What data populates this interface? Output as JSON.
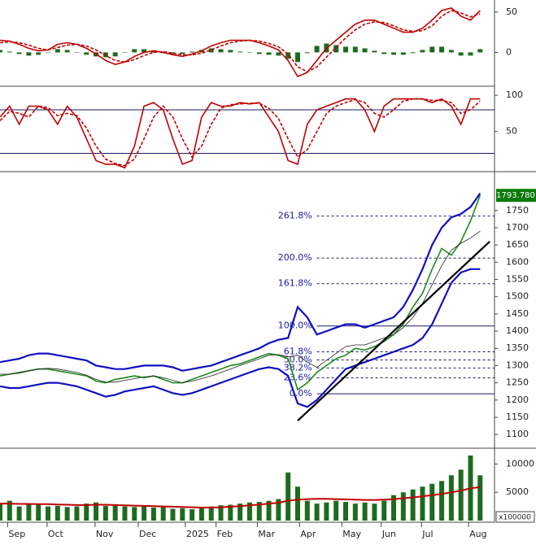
{
  "chart_data": [
    {
      "type": "line",
      "xlim": [
        0,
        51.5
      ],
      "ylim": [
        -40,
        63
      ],
      "yticks": [
        0,
        50
      ],
      "x": [
        0,
        1,
        2,
        3,
        4,
        5,
        6,
        7,
        8,
        9,
        10,
        11,
        12,
        13,
        14,
        15,
        16,
        17,
        18,
        19,
        20,
        21,
        22,
        23,
        24,
        25,
        26,
        27,
        28,
        29,
        30,
        31,
        32,
        33,
        34,
        35,
        36,
        37,
        38,
        39,
        40,
        41,
        42,
        43,
        44,
        45,
        46,
        47,
        48,
        49,
        50
      ],
      "series": [
        {
          "kind": "bar",
          "color": "#1e6b1e",
          "values": [
            3,
            1,
            -2,
            -4,
            -3,
            0,
            4,
            3,
            0,
            -3,
            -5,
            -6,
            -5,
            0,
            4,
            4,
            2,
            -1,
            -2,
            -2,
            1,
            3,
            5,
            4,
            3,
            1,
            0,
            -2,
            -3,
            -4,
            -8,
            -12,
            -1,
            8,
            11,
            9,
            7,
            7,
            5,
            2,
            -2,
            -3,
            -3,
            -1,
            3,
            7,
            7,
            3,
            -4,
            -4,
            4
          ]
        },
        {
          "color": "#c00000",
          "values": [
            15,
            14,
            10,
            5,
            2,
            3,
            10,
            12,
            10,
            5,
            -2,
            -10,
            -15,
            -12,
            -5,
            0,
            2,
            0,
            -3,
            -5,
            -2,
            2,
            8,
            12,
            15,
            15,
            15,
            12,
            8,
            3,
            -10,
            -30,
            -25,
            -10,
            5,
            15,
            25,
            35,
            40,
            40,
            35,
            30,
            25,
            25,
            30,
            40,
            52,
            55,
            45,
            40,
            52
          ]
        },
        {
          "color": "#c00000",
          "dashed": true,
          "values": [
            12,
            13,
            12,
            9,
            5,
            3,
            6,
            9,
            10,
            8,
            3,
            -4,
            -10,
            -12,
            -9,
            -4,
            0,
            1,
            -1,
            -3,
            -3,
            -1,
            3,
            8,
            12,
            14,
            15,
            14,
            11,
            7,
            -2,
            -18,
            -24,
            -18,
            -6,
            6,
            18,
            28,
            35,
            38,
            37,
            33,
            28,
            26,
            27,
            33,
            45,
            52,
            49,
            44,
            48
          ]
        }
      ]
    },
    {
      "type": "line",
      "xlim": [
        0,
        51.5
      ],
      "ylim": [
        -3,
        108
      ],
      "yticks": [
        50,
        100
      ],
      "hlines": [
        80,
        20
      ],
      "x": [
        0,
        1,
        2,
        3,
        4,
        5,
        6,
        7,
        8,
        9,
        10,
        11,
        12,
        13,
        14,
        15,
        16,
        17,
        18,
        19,
        20,
        21,
        22,
        23,
        24,
        25,
        26,
        27,
        28,
        29,
        30,
        31,
        32,
        33,
        34,
        35,
        36,
        37,
        38,
        39,
        40,
        41,
        42,
        43,
        44,
        45,
        46,
        47,
        48,
        49,
        50
      ],
      "series": [
        {
          "color": "#c00000",
          "values": [
            70,
            85,
            60,
            85,
            85,
            80,
            60,
            85,
            70,
            40,
            10,
            5,
            5,
            0,
            30,
            85,
            90,
            80,
            40,
            5,
            10,
            70,
            90,
            85,
            85,
            90,
            88,
            90,
            70,
            50,
            10,
            5,
            60,
            80,
            85,
            90,
            95,
            95,
            80,
            50,
            85,
            95,
            95,
            95,
            95,
            90,
            95,
            85,
            60,
            95,
            95
          ]
        },
        {
          "color": "#c00000",
          "dashed": true,
          "values": [
            65,
            78,
            75,
            70,
            85,
            83,
            72,
            75,
            72,
            55,
            30,
            12,
            6,
            3,
            12,
            40,
            70,
            85,
            70,
            40,
            15,
            30,
            60,
            82,
            87,
            88,
            89,
            89,
            82,
            68,
            40,
            15,
            25,
            50,
            75,
            85,
            90,
            94,
            90,
            75,
            70,
            80,
            92,
            95,
            95,
            93,
            93,
            90,
            75,
            80,
            92
          ]
        }
      ]
    },
    {
      "type": "line",
      "xlim": [
        0,
        51.5
      ],
      "ylim": [
        1065,
        1858
      ],
      "yticks": [
        1100,
        1150,
        1200,
        1250,
        1300,
        1350,
        1400,
        1450,
        1500,
        1550,
        1600,
        1650,
        1700,
        1750
      ],
      "last_value": {
        "value": 1793.78,
        "label": "1793.780"
      },
      "fib_levels": [
        {
          "label": "0.0%",
          "price": 1218
        },
        {
          "label": "23.6%",
          "price": 1264.5
        },
        {
          "label": "38.2%",
          "price": 1293
        },
        {
          "label": "50.0%",
          "price": 1316.5
        },
        {
          "label": "61.8%",
          "price": 1340
        },
        {
          "label": "100.0%",
          "price": 1415
        },
        {
          "label": "161.8%",
          "price": 1537.7
        },
        {
          "label": "200.0%",
          "price": 1612
        },
        {
          "label": "261.8%",
          "price": 1733.7
        }
      ],
      "trendline": {
        "x": [
          31,
          51
        ],
        "y": [
          1140,
          1660
        ]
      },
      "x": [
        0,
        1,
        2,
        3,
        4,
        5,
        6,
        7,
        8,
        9,
        10,
        11,
        12,
        13,
        14,
        15,
        16,
        17,
        18,
        19,
        20,
        21,
        22,
        23,
        24,
        25,
        26,
        27,
        28,
        29,
        30,
        31,
        32,
        33,
        34,
        35,
        36,
        37,
        38,
        39,
        40,
        41,
        42,
        43,
        44,
        45,
        46,
        47,
        48,
        49,
        50
      ],
      "series": [
        {
          "color": "#1a8a1a",
          "values": [
            1270,
            1275,
            1280,
            1285,
            1290,
            1290,
            1285,
            1280,
            1275,
            1270,
            1255,
            1250,
            1260,
            1265,
            1270,
            1265,
            1270,
            1260,
            1250,
            1250,
            1260,
            1270,
            1280,
            1290,
            1300,
            1305,
            1315,
            1325,
            1335,
            1330,
            1320,
            1230,
            1250,
            1280,
            1300,
            1320,
            1330,
            1350,
            1345,
            1355,
            1370,
            1390,
            1420,
            1470,
            1510,
            1580,
            1640,
            1620,
            1660,
            1720,
            1793.78
          ]
        },
        {
          "color": "#1010c0",
          "width": 2.2,
          "values": [
            1310,
            1315,
            1320,
            1330,
            1335,
            1335,
            1330,
            1325,
            1320,
            1315,
            1300,
            1295,
            1290,
            1290,
            1295,
            1300,
            1300,
            1300,
            1295,
            1285,
            1290,
            1295,
            1300,
            1310,
            1320,
            1330,
            1340,
            1350,
            1365,
            1375,
            1380,
            1470,
            1440,
            1390,
            1400,
            1410,
            1420,
            1420,
            1410,
            1420,
            1430,
            1440,
            1470,
            1520,
            1580,
            1650,
            1700,
            1730,
            1740,
            1760,
            1800
          ]
        },
        {
          "color": "#222",
          "width": 0.8,
          "values": [
            1275,
            1275,
            1278,
            1285,
            1290,
            1292,
            1290,
            1285,
            1280,
            1272,
            1260,
            1252,
            1252,
            1257,
            1262,
            1267,
            1270,
            1265,
            1257,
            1250,
            1255,
            1262,
            1270,
            1280,
            1290,
            1300,
            1310,
            1320,
            1330,
            1332,
            1325,
            1330,
            1310,
            1295,
            1315,
            1335,
            1355,
            1360,
            1360,
            1370,
            1380,
            1390,
            1410,
            1440,
            1480,
            1535,
            1590,
            1635,
            1655,
            1670,
            1690
          ]
        },
        {
          "color": "#1010c0",
          "width": 2.2,
          "values": [
            1240,
            1235,
            1235,
            1240,
            1245,
            1250,
            1250,
            1245,
            1240,
            1230,
            1220,
            1210,
            1215,
            1225,
            1230,
            1235,
            1240,
            1230,
            1220,
            1215,
            1220,
            1230,
            1240,
            1250,
            1260,
            1270,
            1280,
            1290,
            1295,
            1290,
            1270,
            1190,
            1180,
            1200,
            1230,
            1260,
            1290,
            1300,
            1310,
            1320,
            1330,
            1340,
            1350,
            1360,
            1380,
            1420,
            1480,
            1540,
            1570,
            1580,
            1580
          ]
        }
      ]
    },
    {
      "type": "line",
      "xlim": [
        0,
        51.5
      ],
      "ylim": [
        0,
        12500
      ],
      "yticks": [
        5000,
        10000
      ],
      "unit_label": "x100000",
      "xticks": [
        {
          "value": 0.8,
          "label": "Sep"
        },
        {
          "value": 4.9,
          "label": "Oct"
        },
        {
          "value": 9.9,
          "label": "Nov"
        },
        {
          "value": 14.4,
          "label": "Dec"
        },
        {
          "value": 19.3,
          "label": "2025"
        },
        {
          "value": 22.5,
          "label": "Feb"
        },
        {
          "value": 26.8,
          "label": "Mar"
        },
        {
          "value": 31.2,
          "label": "Apr"
        },
        {
          "value": 35.6,
          "label": "May"
        },
        {
          "value": 39.7,
          "label": "Jun"
        },
        {
          "value": 43.9,
          "label": "Jul"
        },
        {
          "value": 48.8,
          "label": "Aug"
        }
      ],
      "x": [
        0,
        1,
        2,
        3,
        4,
        5,
        6,
        7,
        8,
        9,
        10,
        11,
        12,
        13,
        14,
        15,
        16,
        17,
        18,
        19,
        20,
        21,
        22,
        23,
        24,
        25,
        26,
        27,
        28,
        29,
        30,
        31,
        32,
        33,
        34,
        35,
        36,
        37,
        38,
        39,
        40,
        41,
        42,
        43,
        44,
        45,
        46,
        47,
        48,
        49,
        50
      ],
      "series": [
        {
          "kind": "bar",
          "color": "#1e6b1e",
          "values": [
            3000,
            3500,
            2500,
            3000,
            2800,
            2500,
            2600,
            2400,
            2500,
            3000,
            3200,
            2600,
            2800,
            2500,
            2400,
            2500,
            2300,
            2400,
            2100,
            2200,
            2000,
            2300,
            2500,
            2700,
            2800,
            3000,
            3200,
            3300,
            3500,
            3800,
            8500,
            6000,
            3500,
            3000,
            3200,
            3500,
            3300,
            3000,
            3200,
            3000,
            3500,
            4500,
            5000,
            5500,
            6000,
            6500,
            7000,
            8000,
            9000,
            11500,
            8000
          ]
        },
        {
          "color": "#c00000",
          "width": 2,
          "values": [
            3000,
            3000,
            2950,
            2950,
            2900,
            2900,
            2850,
            2800,
            2750,
            2750,
            2800,
            2800,
            2750,
            2700,
            2650,
            2600,
            2550,
            2500,
            2450,
            2400,
            2350,
            2300,
            2300,
            2350,
            2450,
            2550,
            2700,
            2850,
            3000,
            3150,
            3500,
            3700,
            3800,
            3850,
            3850,
            3800,
            3750,
            3700,
            3650,
            3650,
            3700,
            3800,
            3950,
            4100,
            4300,
            4500,
            4700,
            5000,
            5300,
            5700,
            5900
          ]
        }
      ]
    }
  ]
}
